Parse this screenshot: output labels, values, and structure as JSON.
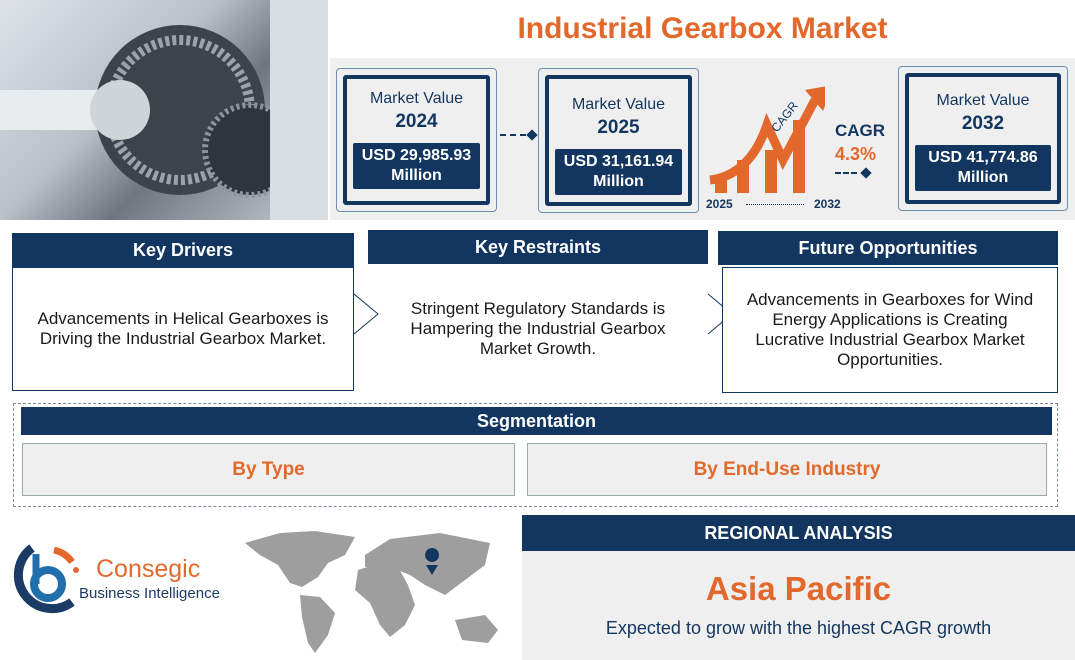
{
  "title": "Industrial Gearbox Market",
  "market_values": [
    {
      "label": "Market Value",
      "year": "2024",
      "value": "USD 29,985.93",
      "unit": "Million"
    },
    {
      "label": "Market Value",
      "year": "2025",
      "value": "USD 31,161.94",
      "unit": "Million"
    },
    {
      "label": "Market Value",
      "year": "2032",
      "value": "USD 41,774.86",
      "unit": "Million"
    }
  ],
  "cagr": {
    "arrow_label": "CAGR",
    "label": "CAGR",
    "value": "4.3%",
    "start_year": "2025",
    "end_year": "2032"
  },
  "sections": [
    {
      "header": "Key Drivers",
      "text": "Advancements in Helical Gearboxes is Driving the Industrial Gearbox Market."
    },
    {
      "header": "Key Restraints",
      "text": "Stringent Regulatory Standards is Hampering the Industrial Gearbox Market Growth."
    },
    {
      "header": "Future Opportunities",
      "text": "Advancements in Gearboxes for Wind Energy Applications is Creating Lucrative Industrial Gearbox Market Opportunities."
    }
  ],
  "segmentation": {
    "header": "Segmentation",
    "items": [
      "By Type",
      "By End-Use Industry"
    ]
  },
  "logo": {
    "name": "Consegic",
    "tagline": "Business Intelligence"
  },
  "regional": {
    "header": "REGIONAL ANALYSIS",
    "region": "Asia Pacific",
    "text": "Expected to grow with the highest CAGR growth"
  },
  "colors": {
    "navy": "#12365f",
    "orange": "#e2692b",
    "gray": "#efefef"
  }
}
